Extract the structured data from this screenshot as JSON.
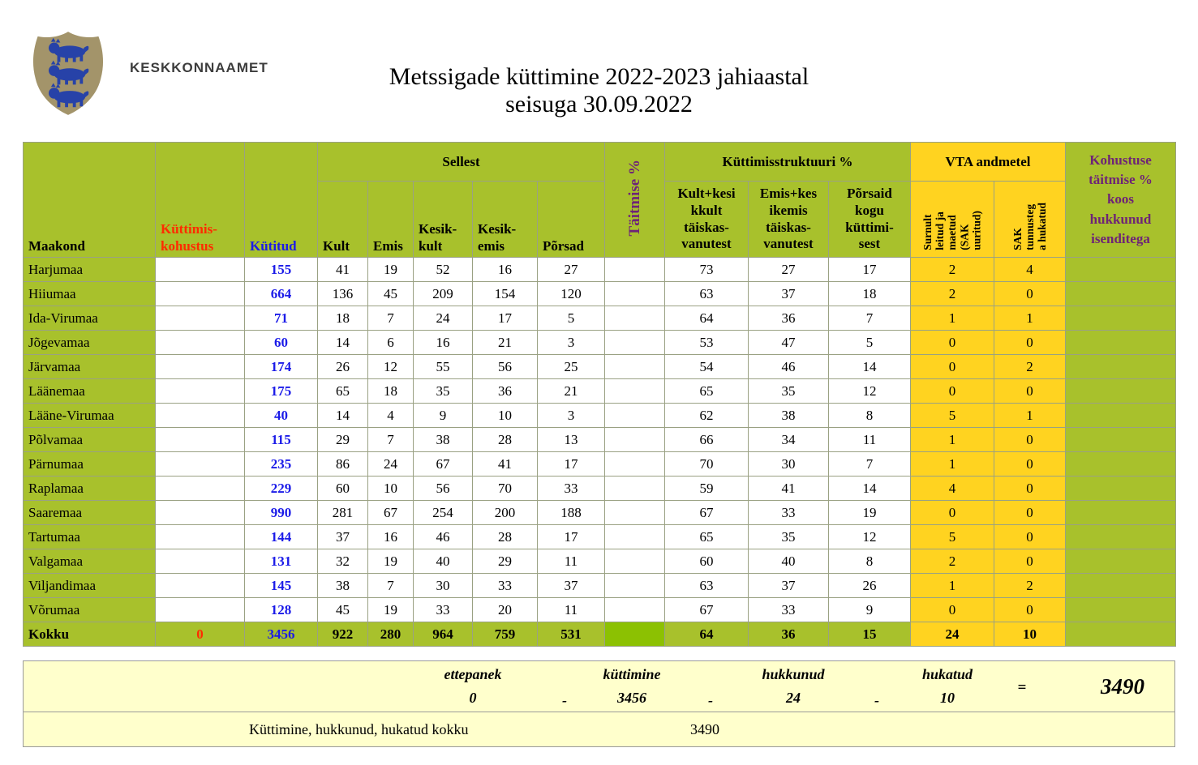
{
  "logo": {
    "org": "KESKKONNAAMET"
  },
  "title": {
    "line1": "Metssigade küttimine 2022-2023 jahiaastal",
    "line2": "seisuga 30.09.2022"
  },
  "colors": {
    "green": "#A8C12C",
    "kokku_green": "#8CC102",
    "yellow": "#FFD320",
    "cream": "#FFFFCC",
    "purple": "#6E2377",
    "red": "#FF2B00",
    "blue": "#1B1BE8"
  },
  "table": {
    "headers": {
      "maakond": "Maakond",
      "kohustus": "Küttimis-\nkohustus",
      "kutitud": "Kütitud",
      "sellest": "Sellest",
      "kult": "Kult",
      "emis": "Emis",
      "kesikkult": "Kesik-\nkult",
      "kesikemis": "Kesik-\nemis",
      "porsad": "Põrsad",
      "taitmise": "Täitmise %",
      "struktuur": "Küttimisstruktuuri %",
      "kult_pct": "Kult+kesi\nkkult\ntäiskas-\nvanutest",
      "emis_pct": "Emis+kes\nikemis\ntäiskas-\nvanutest",
      "porsaid_pct": "Põrsaid\nkogu\nküttimi-\nsest",
      "vta": "VTA andmetel",
      "surnult": "Surnult\nleitud ja\nmaetud\n(SAK\nuuritud)",
      "sak": "SAK\ntunnusteg\na hukatud",
      "kohustuse": "Kohustuse\ntäitmise %\nkoos\nhukkunud\nisenditega"
    },
    "rows": [
      {
        "name": "Harjumaa",
        "kohustus": "",
        "kutitud": "155",
        "kult": "41",
        "emis": "19",
        "kesikkult": "52",
        "kesikemis": "16",
        "porsad": "27",
        "taitmise": "",
        "kult_pct": "73",
        "emis_pct": "27",
        "porsaid_pct": "17",
        "surnult": "2",
        "sak": "4",
        "kohustuse": ""
      },
      {
        "name": "Hiiumaa",
        "kohustus": "",
        "kutitud": "664",
        "kult": "136",
        "emis": "45",
        "kesikkult": "209",
        "kesikemis": "154",
        "porsad": "120",
        "taitmise": "",
        "kult_pct": "63",
        "emis_pct": "37",
        "porsaid_pct": "18",
        "surnult": "2",
        "sak": "0",
        "kohustuse": ""
      },
      {
        "name": "Ida-Virumaa",
        "kohustus": "",
        "kutitud": "71",
        "kult": "18",
        "emis": "7",
        "kesikkult": "24",
        "kesikemis": "17",
        "porsad": "5",
        "taitmise": "",
        "kult_pct": "64",
        "emis_pct": "36",
        "porsaid_pct": "7",
        "surnult": "1",
        "sak": "1",
        "kohustuse": ""
      },
      {
        "name": "Jõgevamaa",
        "kohustus": "",
        "kutitud": "60",
        "kult": "14",
        "emis": "6",
        "kesikkult": "16",
        "kesikemis": "21",
        "porsad": "3",
        "taitmise": "",
        "kult_pct": "53",
        "emis_pct": "47",
        "porsaid_pct": "5",
        "surnult": "0",
        "sak": "0",
        "kohustuse": ""
      },
      {
        "name": "Järvamaa",
        "kohustus": "",
        "kutitud": "174",
        "kult": "26",
        "emis": "12",
        "kesikkult": "55",
        "kesikemis": "56",
        "porsad": "25",
        "taitmise": "",
        "kult_pct": "54",
        "emis_pct": "46",
        "porsaid_pct": "14",
        "surnult": "0",
        "sak": "2",
        "kohustuse": ""
      },
      {
        "name": "Läänemaa",
        "kohustus": "",
        "kutitud": "175",
        "kult": "65",
        "emis": "18",
        "kesikkult": "35",
        "kesikemis": "36",
        "porsad": "21",
        "taitmise": "",
        "kult_pct": "65",
        "emis_pct": "35",
        "porsaid_pct": "12",
        "surnult": "0",
        "sak": "0",
        "kohustuse": ""
      },
      {
        "name": "Lääne-Virumaa",
        "kohustus": "",
        "kutitud": "40",
        "kult": "14",
        "emis": "4",
        "kesikkult": "9",
        "kesikemis": "10",
        "porsad": "3",
        "taitmise": "",
        "kult_pct": "62",
        "emis_pct": "38",
        "porsaid_pct": "8",
        "surnult": "5",
        "sak": "1",
        "kohustuse": ""
      },
      {
        "name": "Põlvamaa",
        "kohustus": "",
        "kutitud": "115",
        "kult": "29",
        "emis": "7",
        "kesikkult": "38",
        "kesikemis": "28",
        "porsad": "13",
        "taitmise": "",
        "kult_pct": "66",
        "emis_pct": "34",
        "porsaid_pct": "11",
        "surnult": "1",
        "sak": "0",
        "kohustuse": ""
      },
      {
        "name": "Pärnumaa",
        "kohustus": "",
        "kutitud": "235",
        "kult": "86",
        "emis": "24",
        "kesikkult": "67",
        "kesikemis": "41",
        "porsad": "17",
        "taitmise": "",
        "kult_pct": "70",
        "emis_pct": "30",
        "porsaid_pct": "7",
        "surnult": "1",
        "sak": "0",
        "kohustuse": ""
      },
      {
        "name": "Raplamaa",
        "kohustus": "",
        "kutitud": "229",
        "kult": "60",
        "emis": "10",
        "kesikkult": "56",
        "kesikemis": "70",
        "porsad": "33",
        "taitmise": "",
        "kult_pct": "59",
        "emis_pct": "41",
        "porsaid_pct": "14",
        "surnult": "4",
        "sak": "0",
        "kohustuse": ""
      },
      {
        "name": "Saaremaa",
        "kohustus": "",
        "kutitud": "990",
        "kult": "281",
        "emis": "67",
        "kesikkult": "254",
        "kesikemis": "200",
        "porsad": "188",
        "taitmise": "",
        "kult_pct": "67",
        "emis_pct": "33",
        "porsaid_pct": "19",
        "surnult": "0",
        "sak": "0",
        "kohustuse": ""
      },
      {
        "name": "Tartumaa",
        "kohustus": "",
        "kutitud": "144",
        "kult": "37",
        "emis": "16",
        "kesikkult": "46",
        "kesikemis": "28",
        "porsad": "17",
        "taitmise": "",
        "kult_pct": "65",
        "emis_pct": "35",
        "porsaid_pct": "12",
        "surnult": "5",
        "sak": "0",
        "kohustuse": ""
      },
      {
        "name": "Valgamaa",
        "kohustus": "",
        "kutitud": "131",
        "kult": "32",
        "emis": "19",
        "kesikkult": "40",
        "kesikemis": "29",
        "porsad": "11",
        "taitmise": "",
        "kult_pct": "60",
        "emis_pct": "40",
        "porsaid_pct": "8",
        "surnult": "2",
        "sak": "0",
        "kohustuse": ""
      },
      {
        "name": "Viljandimaa",
        "kohustus": "",
        "kutitud": "145",
        "kult": "38",
        "emis": "7",
        "kesikkult": "30",
        "kesikemis": "33",
        "porsad": "37",
        "taitmise": "",
        "kult_pct": "63",
        "emis_pct": "37",
        "porsaid_pct": "26",
        "surnult": "1",
        "sak": "2",
        "kohustuse": ""
      },
      {
        "name": "Võrumaa",
        "kohustus": "",
        "kutitud": "128",
        "kult": "45",
        "emis": "19",
        "kesikkult": "33",
        "kesikemis": "20",
        "porsad": "11",
        "taitmise": "",
        "kult_pct": "67",
        "emis_pct": "33",
        "porsaid_pct": "9",
        "surnult": "0",
        "sak": "0",
        "kohustuse": ""
      }
    ],
    "total": {
      "name": "Kokku",
      "kohustus": "0",
      "kutitud": "3456",
      "kult": "922",
      "emis": "280",
      "kesikkult": "964",
      "kesikemis": "759",
      "porsad": "531",
      "taitmise": "",
      "kult_pct": "64",
      "emis_pct": "36",
      "porsaid_pct": "15",
      "surnult": "24",
      "sak": "10",
      "kohustuse": ""
    }
  },
  "summary": {
    "ettepanek_label": "ettepanek",
    "ettepanek": "0",
    "kuttimine_label": "küttimine",
    "kuttimine": "3456",
    "hukkunud_label": "hukkunud",
    "hukkunud": "24",
    "hukatud_label": "hukatud",
    "hukatud": "10",
    "minus": "-",
    "equals": "=",
    "total": "3490",
    "kokku_label": "Küttimine, hukkunud, hukatud kokku",
    "kokku_value": "3490"
  }
}
